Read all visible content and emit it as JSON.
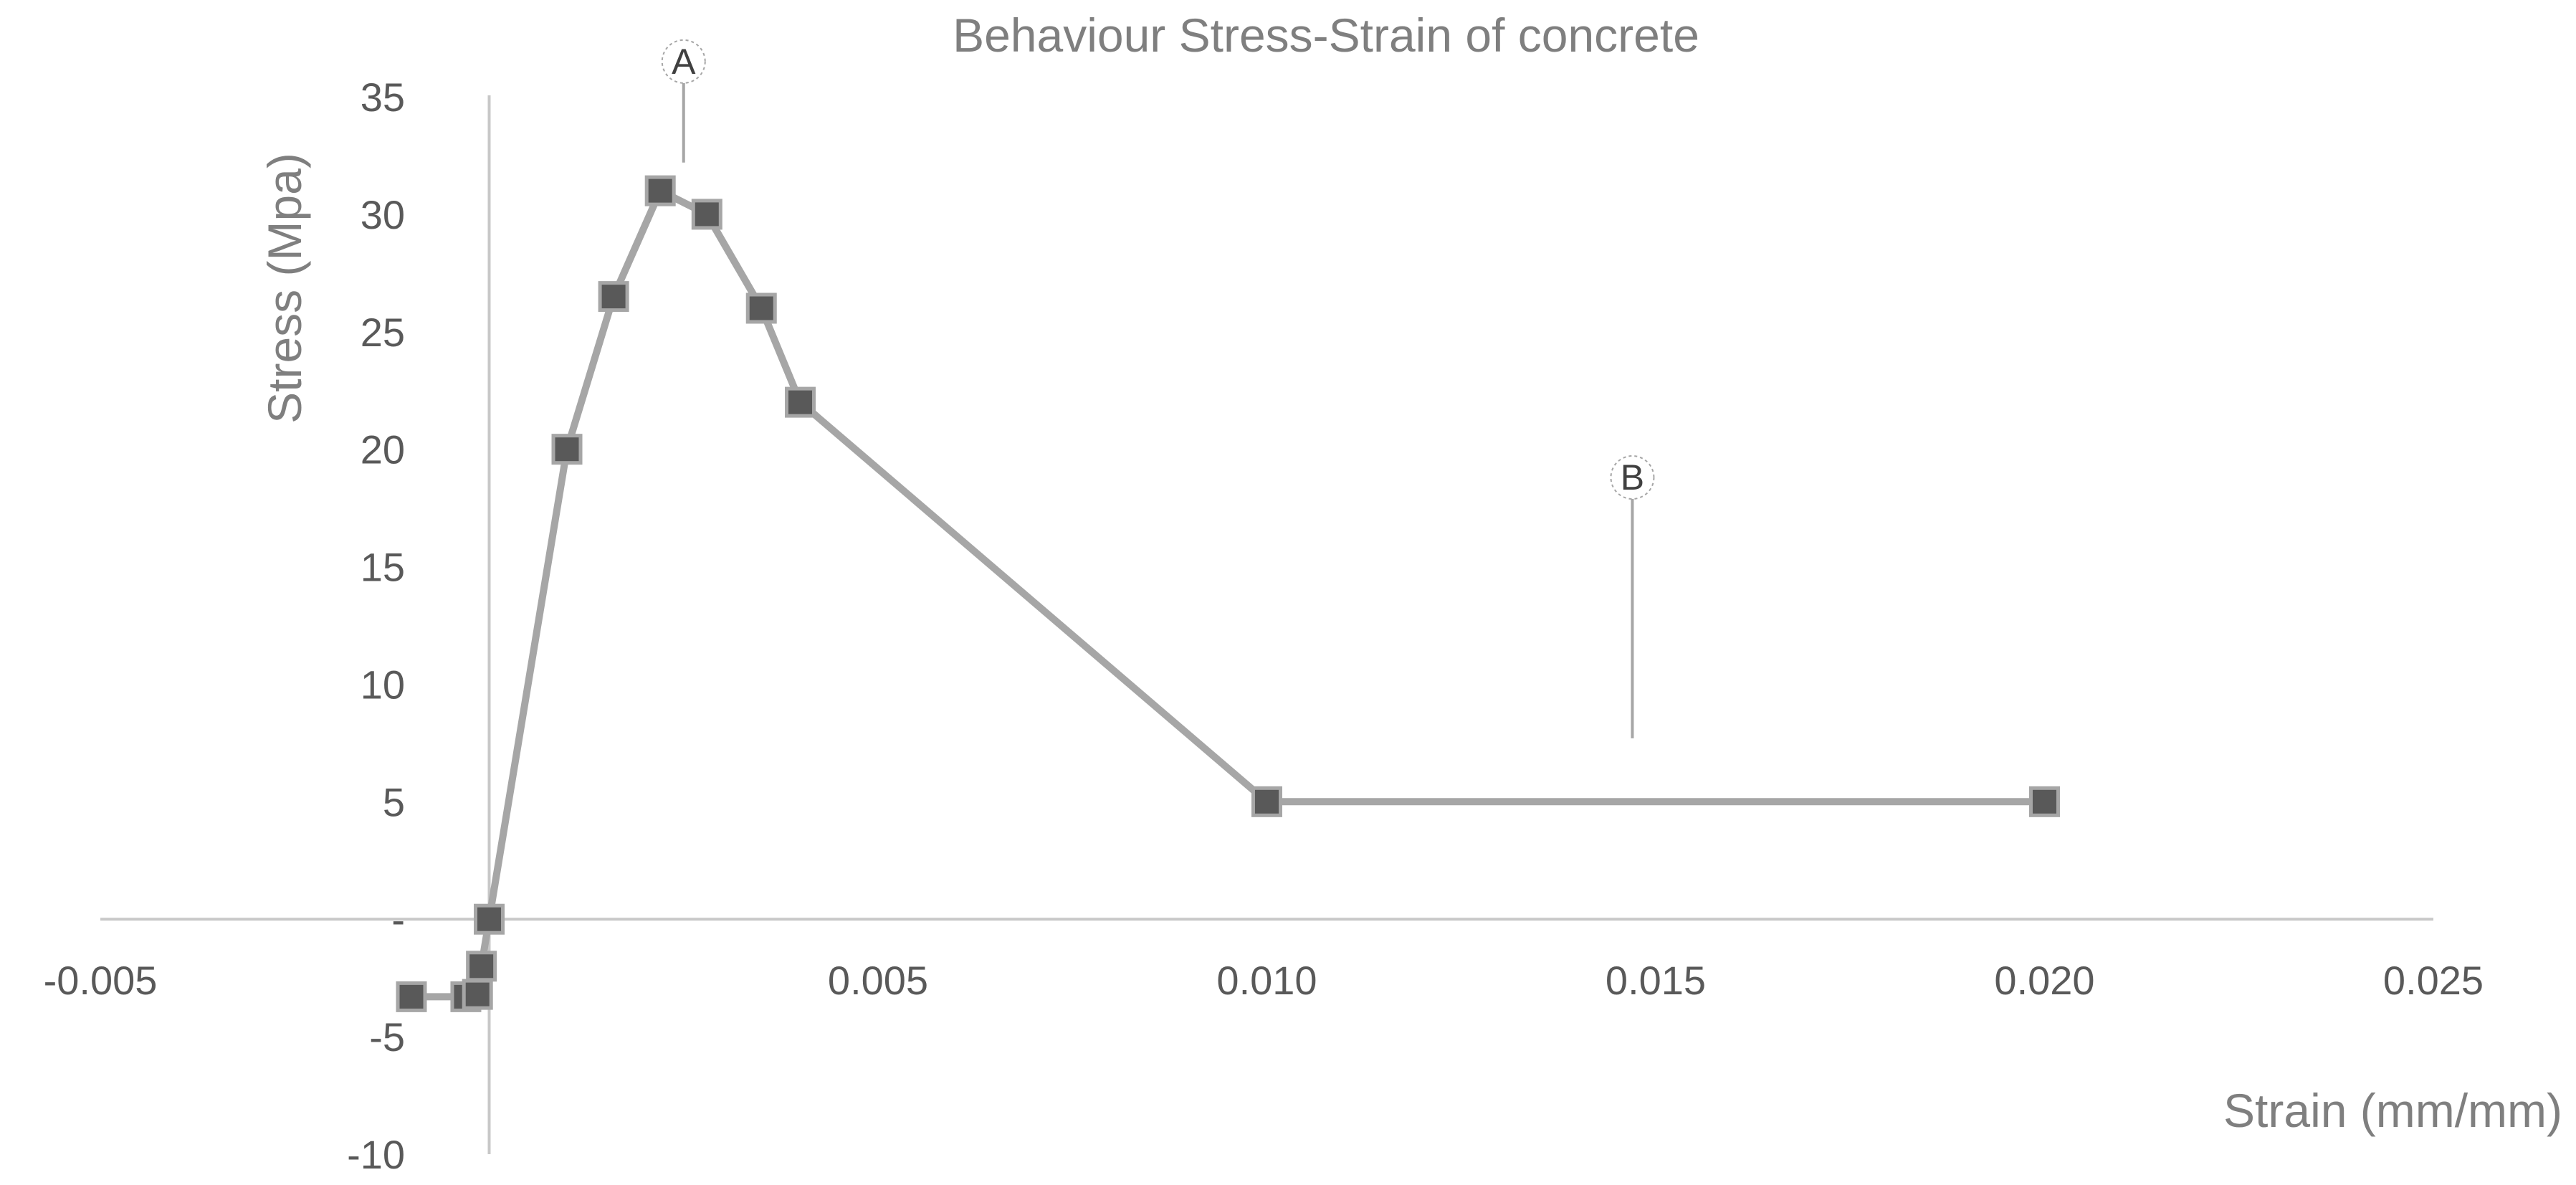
{
  "chart_data": {
    "type": "scatter",
    "title": "Behaviour Stress-Strain of concrete",
    "xlabel": "Strain (mm/mm)",
    "ylabel": "Stress (Mpa)",
    "xlim": [
      -0.005,
      0.025
    ],
    "ylim": [
      -10,
      35
    ],
    "x_ticks": [
      {
        "value": -0.005,
        "label": "-0.005"
      },
      {
        "value": 0.005,
        "label": "0.005"
      },
      {
        "value": 0.01,
        "label": "0.010"
      },
      {
        "value": 0.015,
        "label": "0.015"
      },
      {
        "value": 0.02,
        "label": "0.020"
      },
      {
        "value": 0.025,
        "label": "0.025"
      }
    ],
    "y_ticks": [
      {
        "value": 35,
        "label": "35"
      },
      {
        "value": 30,
        "label": "30"
      },
      {
        "value": 25,
        "label": "25"
      },
      {
        "value": 20,
        "label": "20"
      },
      {
        "value": 15,
        "label": "15"
      },
      {
        "value": 10,
        "label": "10"
      },
      {
        "value": 5,
        "label": "5"
      },
      {
        "value": 0,
        "label": "-"
      },
      {
        "value": -5,
        "label": "-5"
      },
      {
        "value": -10,
        "label": "-10"
      }
    ],
    "grid": false,
    "series": [
      {
        "x": [
          -0.001,
          -0.0003,
          -0.00015,
          -0.0001,
          0.0,
          0.001,
          0.0016,
          0.0022,
          0.0028,
          0.0035,
          0.004,
          0.01,
          0.02
        ],
        "y": [
          -3.3,
          -3.3,
          -3.2,
          -2.0,
          0.0,
          20.0,
          26.5,
          31.0,
          30.0,
          26.0,
          22.0,
          5.0,
          5.0
        ]
      }
    ],
    "annotations": [
      {
        "label": "A",
        "x": 0.0025,
        "y_from": 32.2,
        "y_to": 36.5
      },
      {
        "label": "B",
        "x": 0.0147,
        "y_from": 7.7,
        "y_to": 18.8
      }
    ]
  }
}
